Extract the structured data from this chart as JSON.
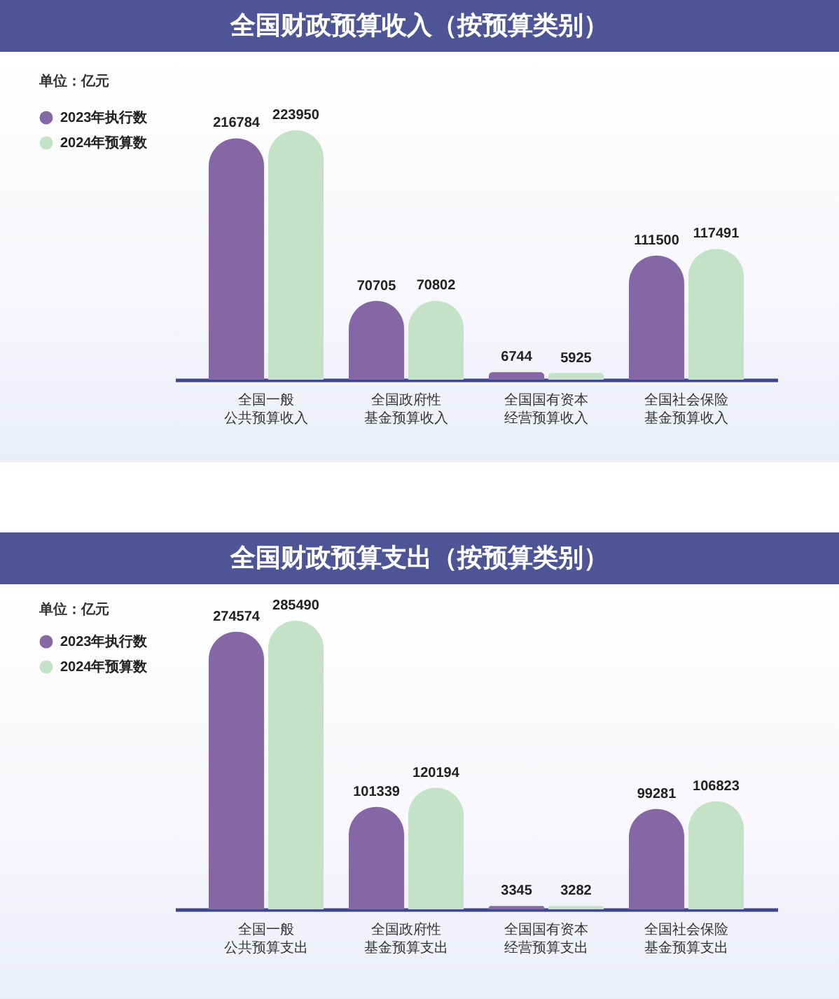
{
  "chart_data": [
    {
      "type": "bar",
      "title": "全国财政预算收入（按预算类别）",
      "annotations": [
        "单位：亿元"
      ],
      "categories": [
        "全国一般公共预算收入",
        "全国政府性基金预算收入",
        "全国国有资本经营预算收入",
        "全国社会保险基金预算收入"
      ],
      "series": [
        {
          "name": "2023年执行数",
          "color": "#8567a6",
          "values": [
            216784,
            70705,
            6744,
            111500
          ]
        },
        {
          "name": "2024年预算数",
          "color": "#c4e2c6",
          "values": [
            223950,
            70802,
            5925,
            117491
          ]
        }
      ],
      "data_labels": true,
      "legend": "top left",
      "tick_labels": "x"
    },
    {
      "type": "bar",
      "title": "全国财政预算支出（按预算类别）",
      "annotations": [
        "单位：亿元"
      ],
      "categories": [
        "全国一般公共预算支出",
        "全国政府性基金预算支出",
        "全国国有资本经营预算支出",
        "全国社会保险基金预算支出"
      ],
      "series": [
        {
          "name": "2023年执行数",
          "color": "#8567a6",
          "values": [
            274574,
            101339,
            3345,
            99281
          ]
        },
        {
          "name": "2024年预算数",
          "color": "#c4e2c6",
          "values": [
            285490,
            120194,
            3282,
            106823
          ]
        }
      ],
      "data_labels": true,
      "legend": "top left",
      "tick_labels": "x"
    }
  ]
}
